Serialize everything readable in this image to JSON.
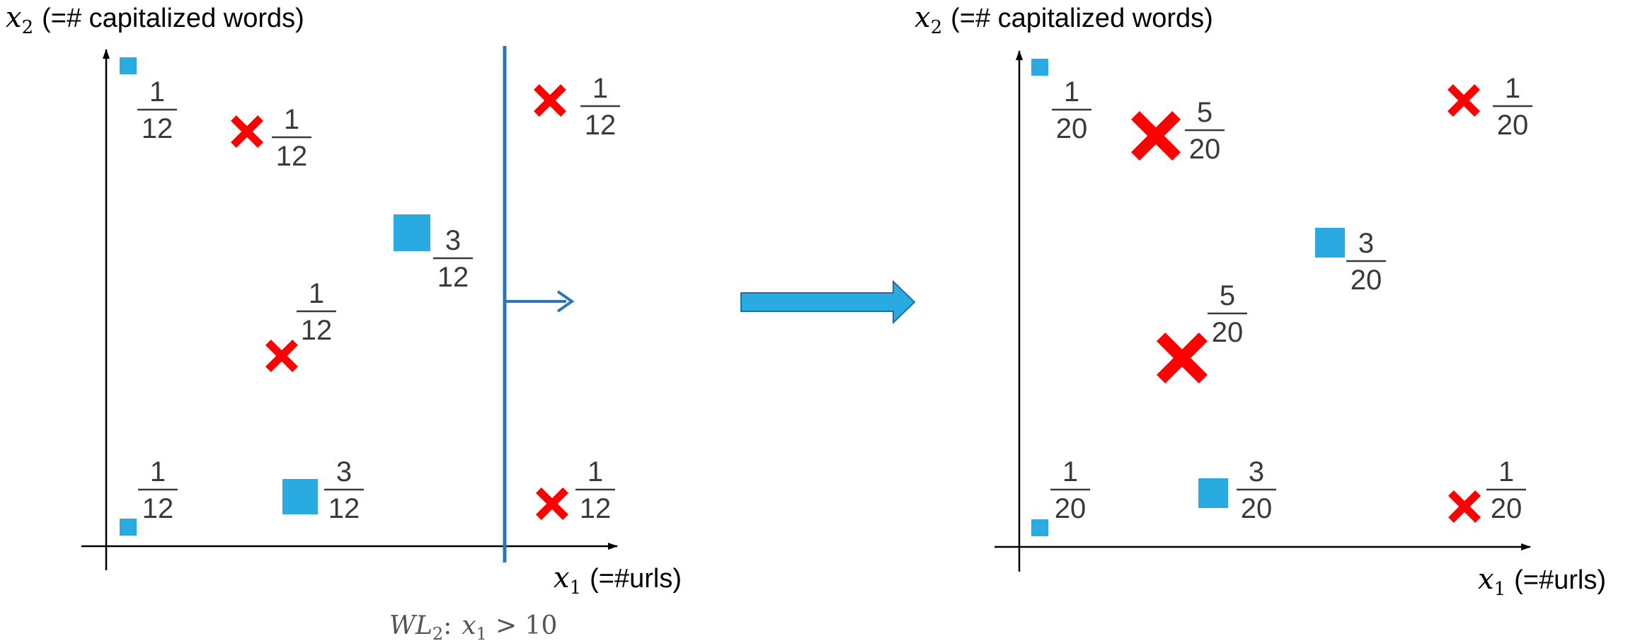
{
  "colors": {
    "positive": "#29abe2",
    "negative": "#ff0000",
    "stump": "#2e75b6",
    "axis": "#000000",
    "arrow": "#29abe2",
    "arrow_border": "#1f6fa5"
  },
  "left_panel": {
    "y_axis_var": "x",
    "y_axis_sub": "2",
    "y_axis_desc": "(=# capitalized words)",
    "x_axis_var": "x",
    "x_axis_sub": "1",
    "x_axis_desc": "(=#urls)",
    "weak_learner": {
      "name": "WL",
      "sub": "2",
      "colon": ":",
      "var": "x",
      "var_sub": "1",
      "op": "> 10"
    },
    "points": [
      {
        "class": "positive",
        "num": "1",
        "den": "12"
      },
      {
        "class": "negative",
        "num": "1",
        "den": "12"
      },
      {
        "class": "negative",
        "num": "1",
        "den": "12"
      },
      {
        "class": "positive",
        "num": "3",
        "den": "12"
      },
      {
        "class": "negative",
        "num": "1",
        "den": "12"
      },
      {
        "class": "positive",
        "num": "1",
        "den": "12"
      },
      {
        "class": "positive",
        "num": "3",
        "den": "12"
      },
      {
        "class": "negative",
        "num": "1",
        "den": "12"
      }
    ]
  },
  "right_panel": {
    "y_axis_var": "x",
    "y_axis_sub": "2",
    "y_axis_desc": "(=# capitalized words)",
    "x_axis_var": "x",
    "x_axis_sub": "1",
    "x_axis_desc": "(=#urls)",
    "points": [
      {
        "class": "positive",
        "num": "1",
        "den": "20"
      },
      {
        "class": "negative",
        "num": "5",
        "den": "20"
      },
      {
        "class": "negative",
        "num": "1",
        "den": "20"
      },
      {
        "class": "positive",
        "num": "3",
        "den": "20"
      },
      {
        "class": "negative",
        "num": "5",
        "den": "20"
      },
      {
        "class": "positive",
        "num": "1",
        "den": "20"
      },
      {
        "class": "positive",
        "num": "3",
        "den": "20"
      },
      {
        "class": "negative",
        "num": "1",
        "den": "20"
      }
    ]
  }
}
